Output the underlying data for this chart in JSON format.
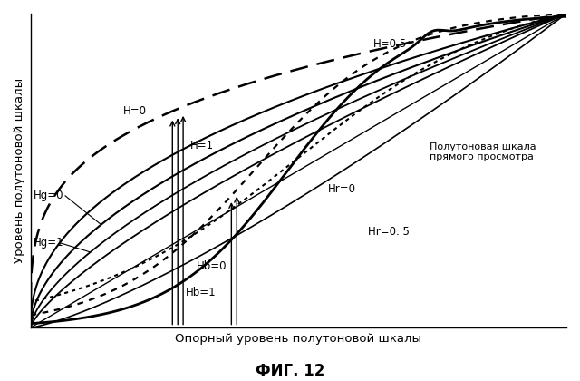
{
  "title": "ФИГ. 12",
  "xlabel": "Опорный уровень полутоновой шкалы",
  "ylabel": "Уровень полутоновой шкалы",
  "annotation_direct": "Полутоновая шкала\nпрямого просмотра",
  "labels": {
    "H0": "H=0",
    "H1": "H=1",
    "H05": "H=0.5",
    "Hr0": "Hr=0",
    "Hr05": "Hr=0. 5",
    "Hg0": "Hg=0",
    "Hg1": "Hg=1",
    "Hb0": "Hb=0",
    "Hb1": "Hb=1"
  },
  "background_color": "#ffffff",
  "line_color": "#000000"
}
